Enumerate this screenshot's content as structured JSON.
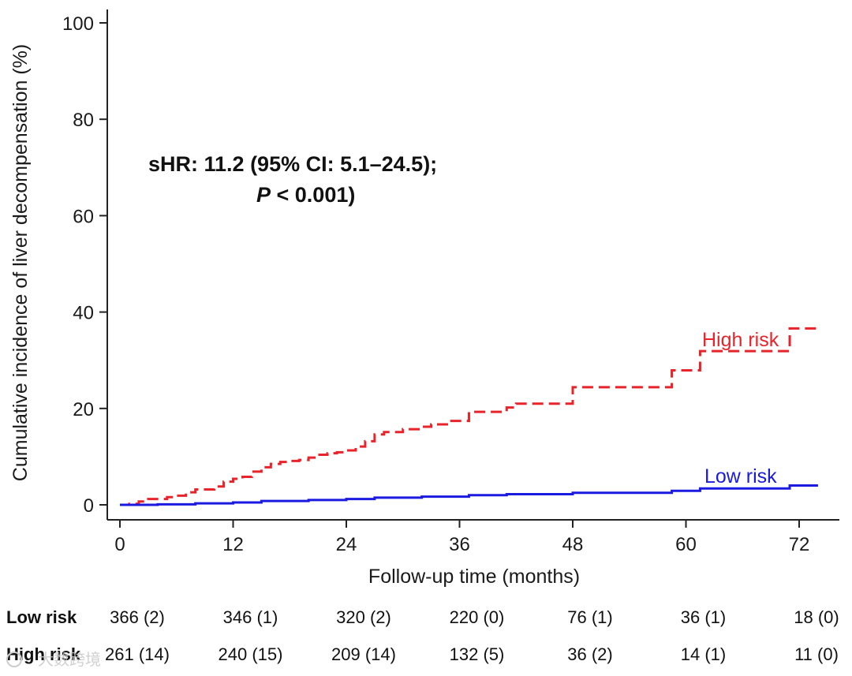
{
  "chart_data": {
    "type": "line",
    "ylabel": "Cumulative incidence of liver decompensation (%)",
    "xlabel": "Follow-up time (months)",
    "ylim": [
      0,
      100
    ],
    "xlim": [
      0,
      75
    ],
    "yticks": [
      0,
      20,
      40,
      60,
      80,
      100
    ],
    "xticks": [
      0,
      12,
      24,
      36,
      48,
      60,
      72
    ],
    "grid": false,
    "annotation": {
      "line1": "sHR: 11.2 (95% CI: 5.1–24.5);",
      "line2_italic": "P",
      "line2_rest": " < 0.001)"
    },
    "series": [
      {
        "name": "High risk",
        "color": "#e8232a",
        "style": "dashed",
        "steps": [
          [
            0,
            0
          ],
          [
            1,
            0.2
          ],
          [
            2,
            0.7
          ],
          [
            3,
            1.2
          ],
          [
            5,
            1.6
          ],
          [
            6,
            1.9
          ],
          [
            7,
            2.6
          ],
          [
            8,
            3.2
          ],
          [
            10,
            3.8
          ],
          [
            11,
            4.8
          ],
          [
            12,
            5.4
          ],
          [
            13,
            5.8
          ],
          [
            14,
            6.9
          ],
          [
            15,
            7.8
          ],
          [
            16,
            8.5
          ],
          [
            17,
            8.9
          ],
          [
            18,
            9.1
          ],
          [
            19,
            9.3
          ],
          [
            20,
            9.8
          ],
          [
            21,
            10.4
          ],
          [
            22,
            10.7
          ],
          [
            23,
            10.9
          ],
          [
            24,
            11.3
          ],
          [
            25,
            12.1
          ],
          [
            26,
            13.2
          ],
          [
            27,
            14.6
          ],
          [
            28,
            15.1
          ],
          [
            30,
            15.7
          ],
          [
            32,
            16.2
          ],
          [
            33,
            16.7
          ],
          [
            35,
            17.4
          ],
          [
            37,
            19.3
          ],
          [
            41,
            20.2
          ],
          [
            42,
            21.0
          ],
          [
            48,
            24.4
          ],
          [
            58.5,
            27.9
          ],
          [
            61.5,
            31.9
          ],
          [
            71,
            36.6
          ],
          [
            74,
            36.6
          ]
        ]
      },
      {
        "name": "Low risk",
        "color": "#1a1ae0",
        "style": "solid",
        "steps": [
          [
            0,
            0
          ],
          [
            4,
            0.1
          ],
          [
            8,
            0.3
          ],
          [
            12,
            0.5
          ],
          [
            15,
            0.8
          ],
          [
            20,
            1.0
          ],
          [
            24,
            1.2
          ],
          [
            27,
            1.5
          ],
          [
            32,
            1.7
          ],
          [
            37,
            2.0
          ],
          [
            41,
            2.2
          ],
          [
            48,
            2.5
          ],
          [
            58.5,
            2.9
          ],
          [
            61.5,
            3.4
          ],
          [
            71,
            4.0
          ],
          [
            74,
            4.0
          ]
        ]
      }
    ]
  },
  "risk_table": {
    "rows": [
      {
        "label": "Low risk",
        "values": [
          "366 (2)",
          "346 (1)",
          "320 (2)",
          "220 (0)",
          "76 (1)",
          "36 (1)",
          "18 (0)"
        ]
      },
      {
        "label": "High risk",
        "values": [
          "261 (14)",
          "240 (15)",
          "209 (14)",
          "132 (5)",
          "36 (2)",
          "14 (1)",
          "11 (0)"
        ]
      }
    ]
  },
  "watermark": {
    "text": "大数跨境"
  }
}
